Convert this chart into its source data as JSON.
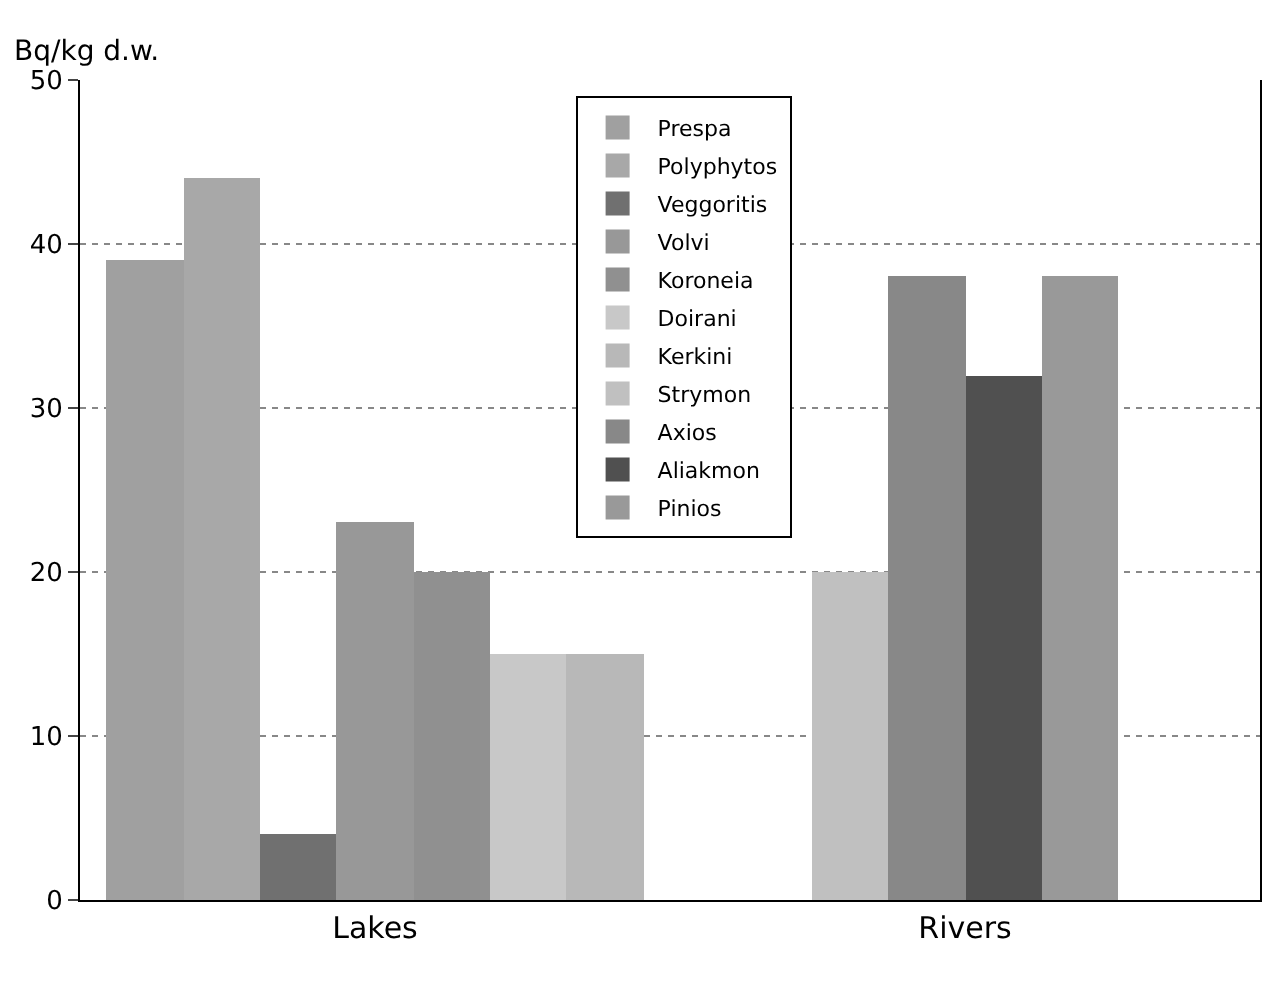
{
  "chart_data": {
    "type": "bar",
    "ylabel": "Bq/kg d.w.",
    "categories": [
      "Lakes",
      "Rivers"
    ],
    "series": [
      {
        "name": "Prespa",
        "color": "#a0a0a0",
        "values": [
          39,
          null
        ]
      },
      {
        "name": "Polyphytos",
        "color": "#a8a8a8",
        "values": [
          44,
          null
        ]
      },
      {
        "name": "Veggoritis",
        "color": "#707070",
        "values": [
          4,
          null
        ]
      },
      {
        "name": "Volvi",
        "color": "#989898",
        "values": [
          23,
          null
        ]
      },
      {
        "name": "Koroneia",
        "color": "#909090",
        "values": [
          20,
          null
        ]
      },
      {
        "name": "Doirani",
        "color": "#c8c8c8",
        "values": [
          15,
          null
        ]
      },
      {
        "name": "Kerkini",
        "color": "#b8b8b8",
        "values": [
          15,
          null
        ]
      },
      {
        "name": "Strymon",
        "color": "#c0c0c0",
        "values": [
          null,
          20
        ]
      },
      {
        "name": "Axios",
        "color": "#888888",
        "values": [
          null,
          38
        ]
      },
      {
        "name": "Aliakmon",
        "color": "#505050",
        "values": [
          null,
          32
        ]
      },
      {
        "name": "Pinios",
        "color": "#999999",
        "values": [
          null,
          38
        ]
      }
    ],
    "ylim": [
      0,
      50
    ],
    "yticks": [
      0,
      10,
      20,
      30,
      40,
      50
    ],
    "grid": "y",
    "legend": "top"
  }
}
